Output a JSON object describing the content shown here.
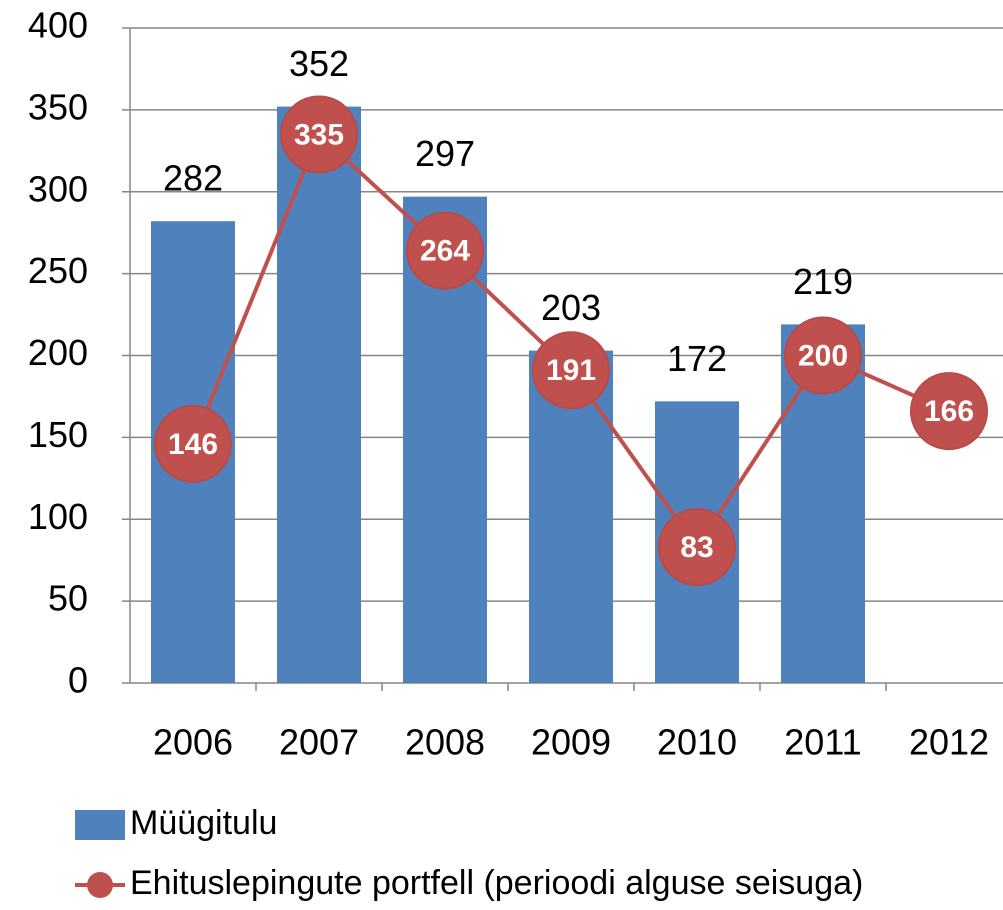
{
  "chart_data": {
    "type": "combo",
    "categories": [
      "2006",
      "2007",
      "2008",
      "2009",
      "2010",
      "2011",
      "2012"
    ],
    "series": [
      {
        "name": "Müügitulu",
        "type": "bar",
        "color": "#4f81bd",
        "values": [
          282,
          352,
          297,
          203,
          172,
          219,
          null
        ]
      },
      {
        "name": "Ehituslepingute portfell (perioodi alguse seisuga)",
        "type": "line",
        "color": "#c0504d",
        "values": [
          146,
          335,
          264,
          191,
          83,
          200,
          166
        ]
      }
    ],
    "ylim": [
      0,
      400
    ],
    "yticks": [
      0,
      50,
      100,
      150,
      200,
      250,
      300,
      350,
      400
    ],
    "grid": true,
    "legend": "bottom"
  }
}
